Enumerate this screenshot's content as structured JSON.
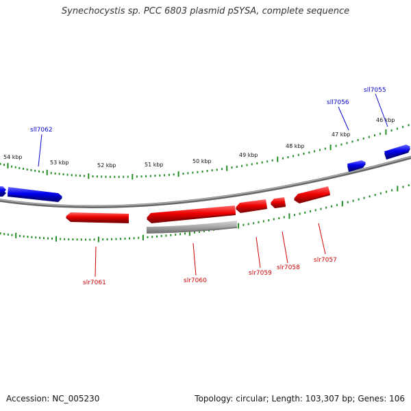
{
  "title": "Synechocystis sp. PCC 6803 plasmid pSYSA, complete sequence",
  "footer": {
    "accession": "Accession: NC_005230",
    "topology": "Topology: circular; Length: 103,307 bp; Genes: 106"
  },
  "colors": {
    "forward": "#0000ee",
    "reverse": "#ee0000",
    "other": "#aaaaaa",
    "tick": "#228b22",
    "backbone": "#888888"
  },
  "scale_labels": [
    "54 kbp",
    "53 kbp",
    "52 kbp",
    "51 kbp",
    "50 kbp",
    "49 kbp",
    "48 kbp",
    "47 kbp",
    "46 kbp"
  ],
  "genes_forward": [
    {
      "name": "sll7062"
    },
    {
      "name": "sll7056"
    },
    {
      "name": "sll7055"
    }
  ],
  "genes_reverse": [
    {
      "name": "slr7061"
    },
    {
      "name": "slr7060"
    },
    {
      "name": "slr7059"
    },
    {
      "name": "slr7058"
    },
    {
      "name": "slr7057"
    }
  ]
}
